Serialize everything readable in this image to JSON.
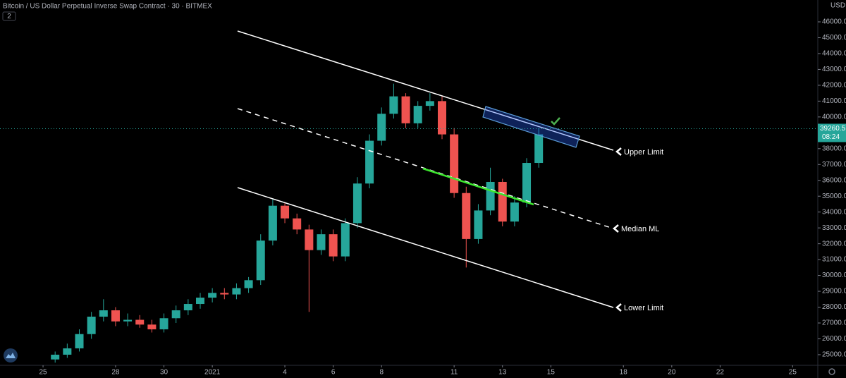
{
  "chart_data": {
    "type": "candlestick",
    "title": "Bitcoin / US Dollar Perpetual Inverse Swap Contract · 30 · BITMEX",
    "indicator_count": "2",
    "currency": "USD",
    "up_color": "#26a69a",
    "down_color": "#ef5350",
    "x": [
      0.5,
      1,
      1.5,
      2,
      2.5,
      3,
      3.5,
      4,
      4.5,
      5,
      5.5,
      6,
      6.5,
      7,
      7.5,
      8,
      8.5,
      9,
      9.5,
      10,
      10.5,
      11,
      11.5,
      12,
      12.5,
      13,
      13.5,
      14,
      14.5,
      15,
      15.5,
      16,
      16.5,
      17,
      17.5,
      18,
      18.5,
      19,
      19.5,
      20,
      20.5
    ],
    "open": [
      24700,
      25000,
      25400,
      26300,
      27400,
      27800,
      27100,
      27200,
      26900,
      26600,
      27300,
      27800,
      28200,
      28600,
      28900,
      28800,
      29200,
      29700,
      32200,
      34400,
      33600,
      32900,
      31600,
      32600,
      31200,
      33300,
      35800,
      38500,
      40200,
      41300,
      39600,
      40700,
      41000,
      38900,
      35200,
      32300,
      34100,
      35900,
      33400,
      34600,
      37100
    ],
    "high": [
      25200,
      25700,
      26600,
      27700,
      28500,
      28000,
      27600,
      27500,
      27200,
      27600,
      28100,
      28500,
      28900,
      29200,
      29200,
      29500,
      29900,
      32600,
      34800,
      34600,
      33900,
      33200,
      32900,
      32900,
      33600,
      36200,
      38900,
      40600,
      42100,
      41500,
      41000,
      41500,
      41300,
      39300,
      35600,
      34500,
      36800,
      36100,
      35000,
      37400,
      39300
    ],
    "low": [
      24500,
      24800,
      25200,
      26000,
      27100,
      26800,
      26800,
      26700,
      26400,
      26400,
      27000,
      27500,
      27900,
      28300,
      28500,
      28500,
      28900,
      29400,
      31900,
      33300,
      32600,
      27700,
      31300,
      30900,
      30900,
      33000,
      35500,
      38200,
      39900,
      39300,
      39300,
      40400,
      38600,
      34900,
      30500,
      32000,
      33800,
      33100,
      33100,
      34300,
      36800
    ],
    "close": [
      25000,
      25400,
      26300,
      27400,
      27800,
      27100,
      27200,
      26900,
      26600,
      27300,
      27800,
      28200,
      28600,
      28900,
      28800,
      29200,
      29700,
      32200,
      34400,
      33600,
      32900,
      31600,
      32600,
      31200,
      33300,
      35800,
      38500,
      40200,
      41300,
      39600,
      40700,
      41000,
      38900,
      35200,
      32300,
      34100,
      35900,
      33400,
      34600,
      37100,
      38900
    ],
    "xlim": [
      -1.78,
      32.04
    ],
    "ylim": [
      24330,
      47380
    ],
    "xticks": [
      {
        "value": 0,
        "label": "25"
      },
      {
        "value": 3,
        "label": "28"
      },
      {
        "value": 5,
        "label": "30"
      },
      {
        "value": 7,
        "label": "2021"
      },
      {
        "value": 10,
        "label": "4"
      },
      {
        "value": 12,
        "label": "6"
      },
      {
        "value": 14,
        "label": "8"
      },
      {
        "value": 17,
        "label": "11"
      },
      {
        "value": 19,
        "label": "13"
      },
      {
        "value": 21,
        "label": "15"
      },
      {
        "value": 24,
        "label": "18"
      },
      {
        "value": 26,
        "label": "20"
      },
      {
        "value": 28,
        "label": "22"
      },
      {
        "value": 31,
        "label": "25"
      }
    ],
    "yticks": [
      {
        "value": 25000,
        "label": "25000.0"
      },
      {
        "value": 26000,
        "label": "26000.0"
      },
      {
        "value": 27000,
        "label": "27000.0"
      },
      {
        "value": 28000,
        "label": "28000.0"
      },
      {
        "value": 29000,
        "label": "29000.0"
      },
      {
        "value": 30000,
        "label": "30000.0"
      },
      {
        "value": 31000,
        "label": "31000.0"
      },
      {
        "value": 32000,
        "label": "32000.0"
      },
      {
        "value": 33000,
        "label": "33000.0"
      },
      {
        "value": 34000,
        "label": "34000.0"
      },
      {
        "value": 35000,
        "label": "35000.0"
      },
      {
        "value": 36000,
        "label": "36000.0"
      },
      {
        "value": 37000,
        "label": "37000.0"
      },
      {
        "value": 38000,
        "label": "38000.0"
      },
      {
        "value": 39000,
        "label": "39000.0"
      },
      {
        "value": 40000,
        "label": "40000.0"
      },
      {
        "value": 41000,
        "label": "41000.0"
      },
      {
        "value": 42000,
        "label": "42000.0"
      },
      {
        "value": 43000,
        "label": "43000.0"
      },
      {
        "value": 44000,
        "label": "44000.0"
      },
      {
        "value": 45000,
        "label": "45000.0"
      },
      {
        "value": 46000,
        "label": "46000.0"
      }
    ],
    "last_price": 39260.5,
    "countdown": "08:24",
    "annotations": [
      "Upper Limit",
      "Median ML",
      "Lower Limit"
    ]
  }
}
